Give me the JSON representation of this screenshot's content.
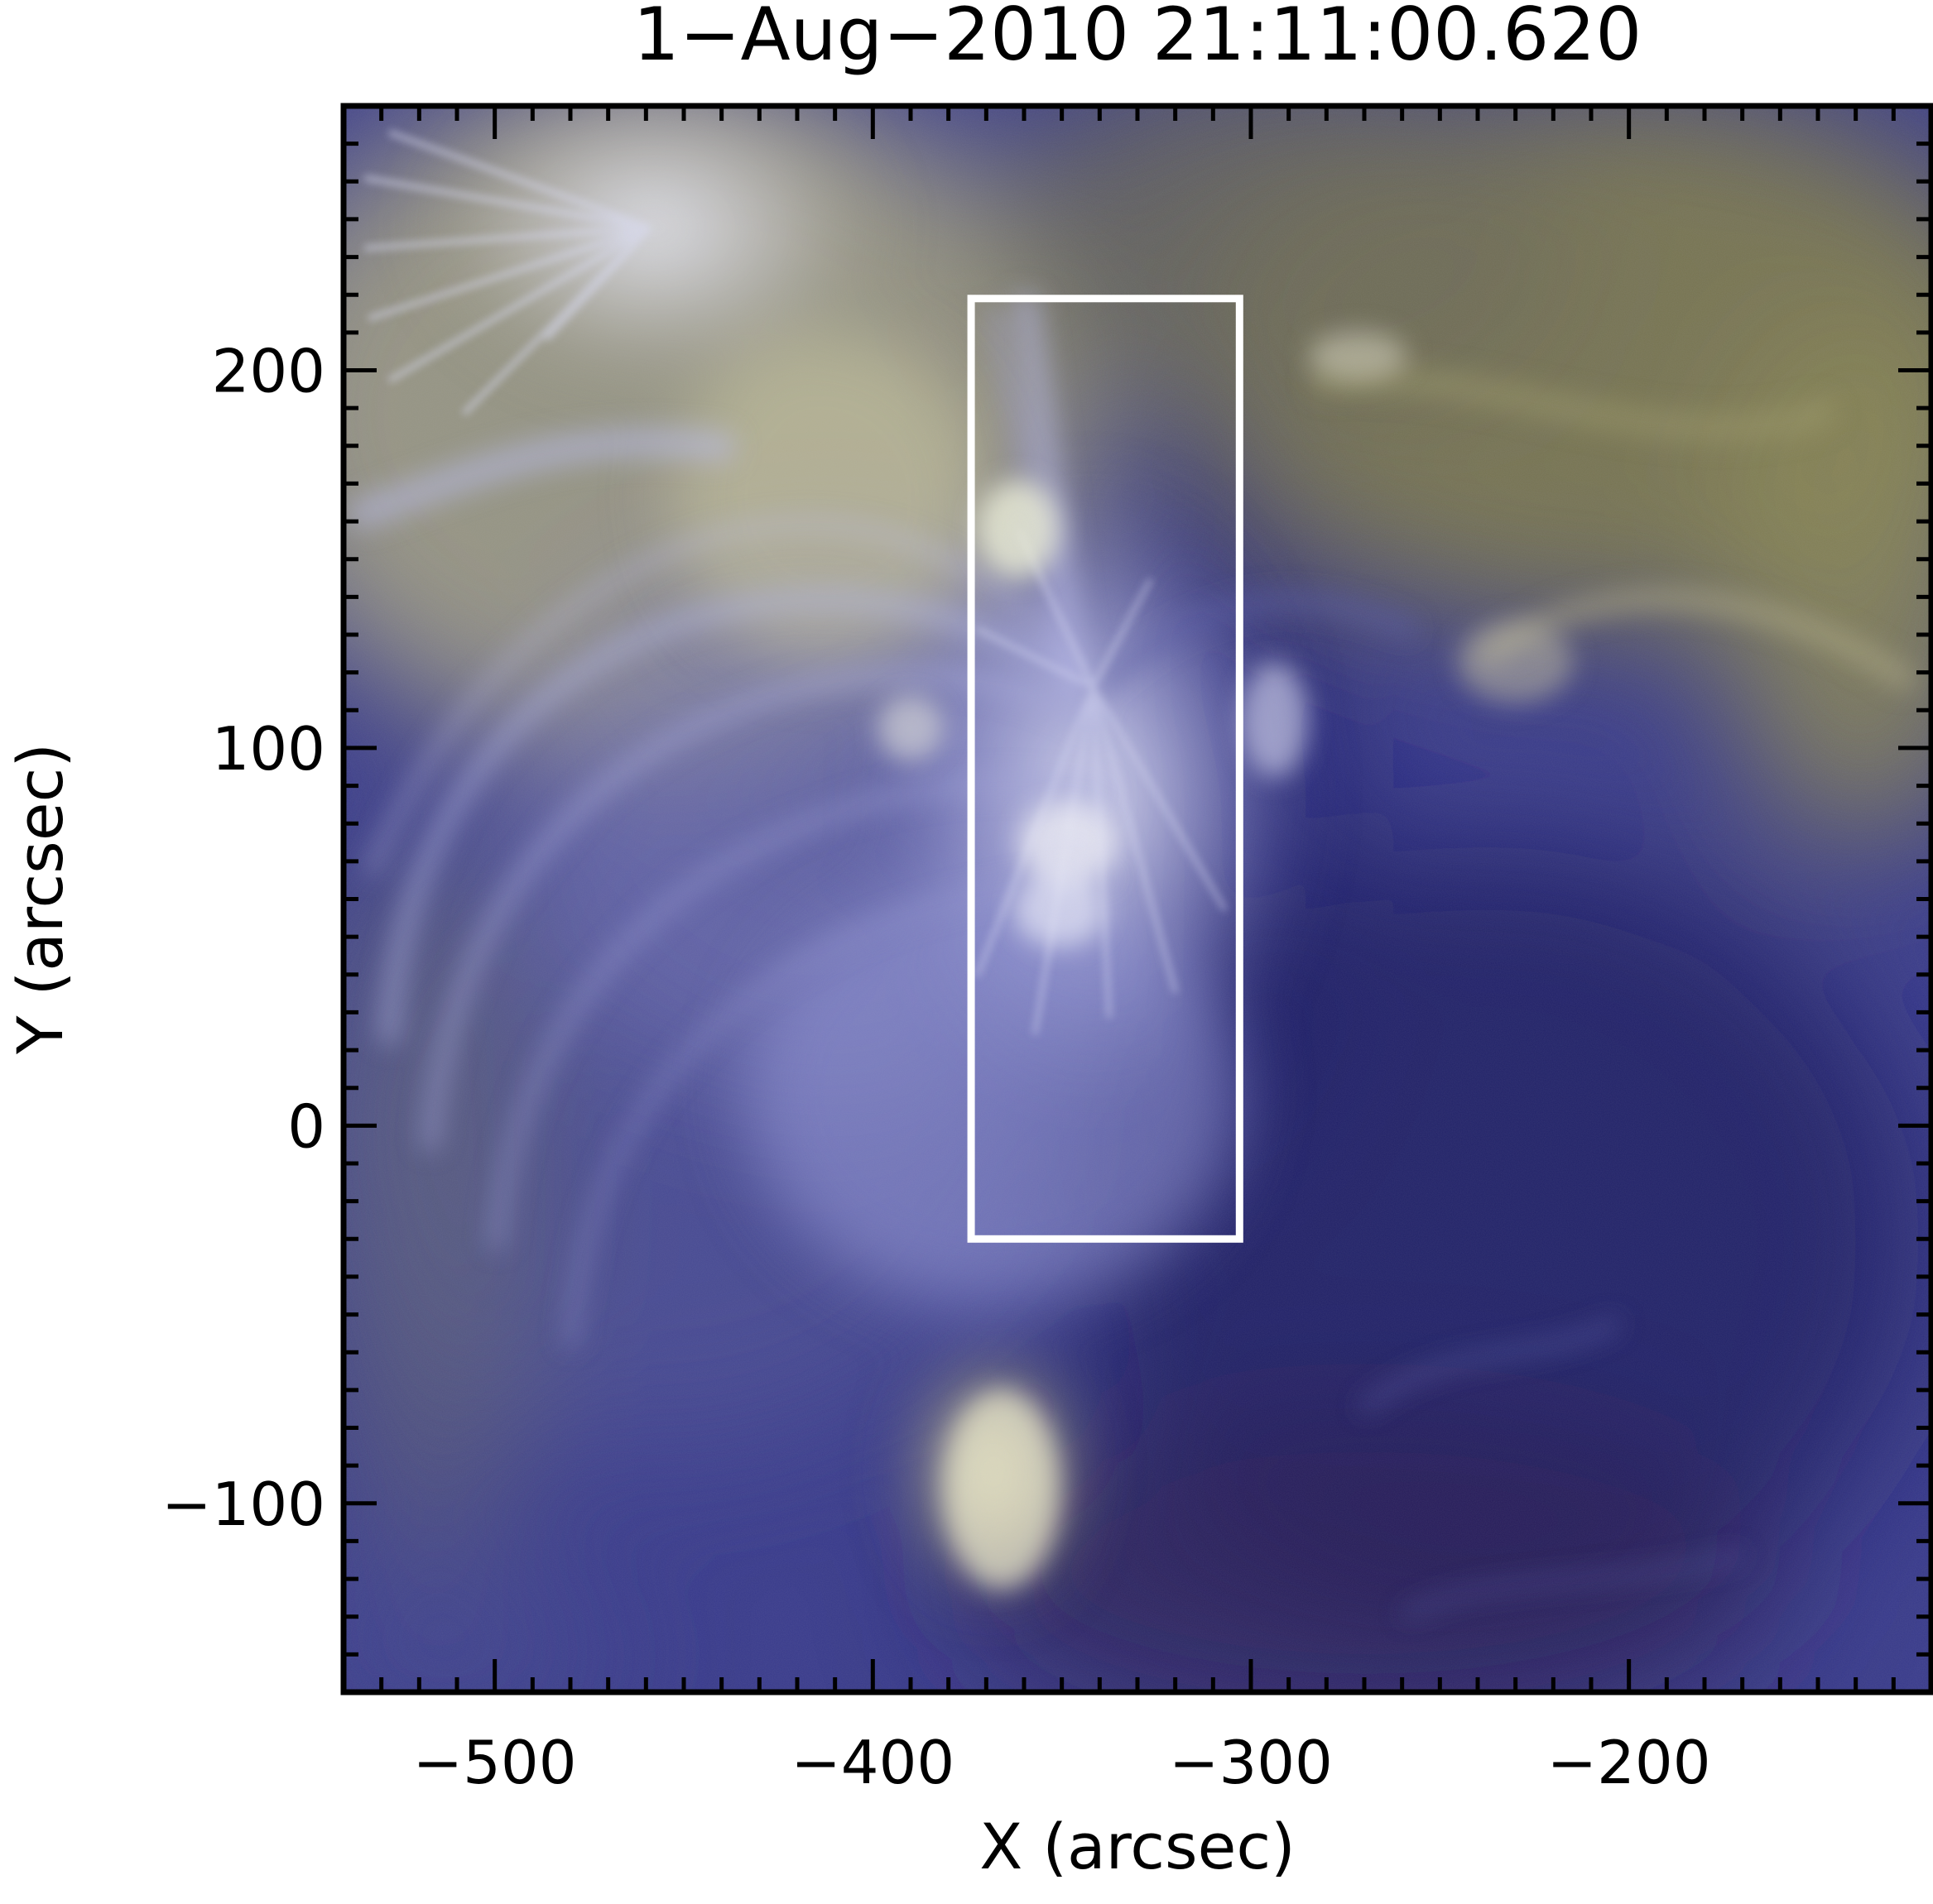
{
  "figure": {
    "title": "1−Aug−2010 21:11:00.620",
    "xlabel": "X (arcsec)",
    "ylabel": "Y (arcsec)",
    "xlim": [
      -540,
      -120
    ],
    "ylim": [
      -150,
      270
    ],
    "x_ticks": [
      {
        "value": -500,
        "label": "−500"
      },
      {
        "value": -400,
        "label": "−400"
      },
      {
        "value": -300,
        "label": "−300"
      },
      {
        "value": -200,
        "label": "−200"
      }
    ],
    "y_ticks": [
      {
        "value": -100,
        "label": "−100"
      },
      {
        "value": 0,
        "label": "0"
      },
      {
        "value": 100,
        "label": "100"
      },
      {
        "value": 200,
        "label": "200"
      }
    ],
    "minor_tick_step": 10,
    "selection_box": {
      "x0": -374,
      "x1": -303,
      "y0": -30,
      "y1": 219
    },
    "colors": {
      "frame": "#000000",
      "box": "#ffffff",
      "base_blue": "#3a3c8c",
      "dark_blue": "#1e1c62",
      "olive": "#8f8c52",
      "bright_lavender": "#d6d8f4"
    }
  }
}
